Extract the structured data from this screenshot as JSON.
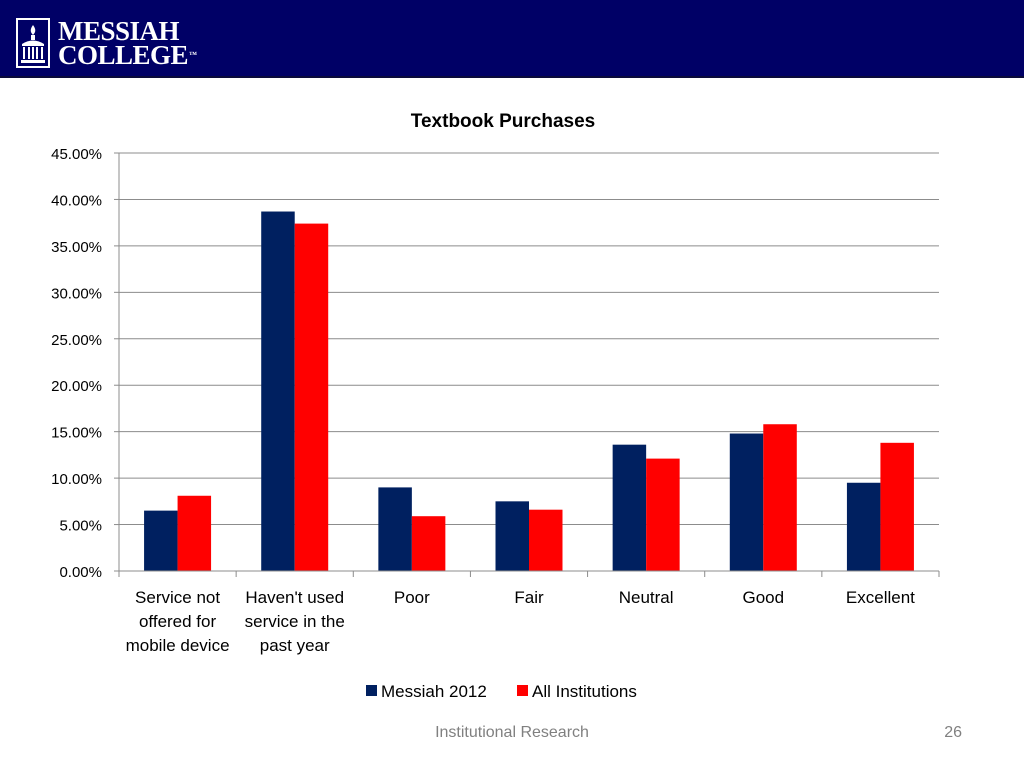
{
  "header": {
    "logo_line1": "MESSIAH",
    "logo_line2": "COLLEGE",
    "logo_tm": "™",
    "background_color": "#000066"
  },
  "chart_data": {
    "type": "bar",
    "title": "Textbook Purchases",
    "xlabel": "",
    "ylabel": "",
    "categories": [
      "Service not offered for mobile device",
      "Haven't used service in the past year",
      "Poor",
      "Fair",
      "Neutral",
      "Good",
      "Excellent"
    ],
    "category_lines": [
      [
        "Service not",
        "offered for",
        "mobile device"
      ],
      [
        "Haven't used",
        "service in the",
        "past year"
      ],
      [
        "Poor"
      ],
      [
        "Fair"
      ],
      [
        "Neutral"
      ],
      [
        "Good"
      ],
      [
        "Excellent"
      ]
    ],
    "series": [
      {
        "name": "Messiah 2012",
        "color": "#002060",
        "values": [
          6.5,
          38.7,
          9.0,
          7.5,
          13.6,
          14.8,
          9.5
        ]
      },
      {
        "name": "All Institutions",
        "color": "#FF0000",
        "values": [
          8.1,
          37.4,
          5.9,
          6.6,
          12.1,
          15.8,
          13.8
        ]
      }
    ],
    "ylim": [
      0,
      45
    ],
    "yticks": [
      0,
      5,
      10,
      15,
      20,
      25,
      30,
      35,
      40,
      45
    ],
    "ytick_labels": [
      "0.00%",
      "5.00%",
      "10.00%",
      "15.00%",
      "20.00%",
      "25.00%",
      "30.00%",
      "35.00%",
      "40.00%",
      "45.00%"
    ],
    "grid": true,
    "legend_position": "bottom"
  },
  "footer": {
    "text": "Institutional Research",
    "page_number": "26"
  }
}
